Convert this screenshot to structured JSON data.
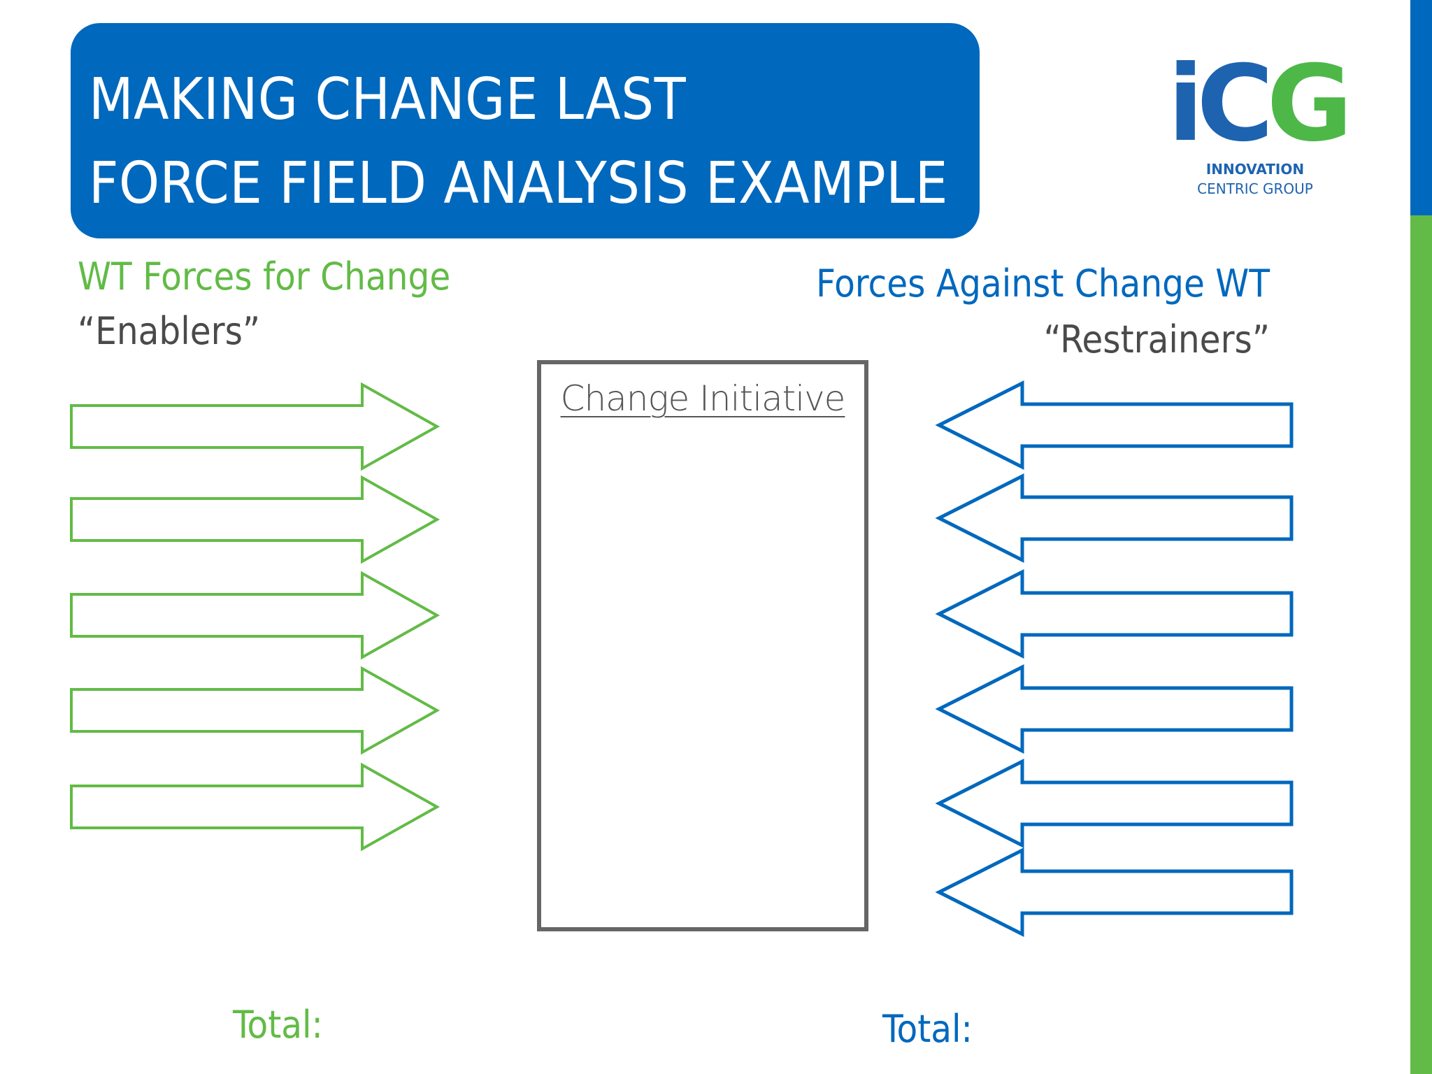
{
  "colors": {
    "blue": "#0068bd",
    "green": "#62bb46",
    "logo_blue": "#1e63b0",
    "logo_green": "#4db848",
    "grey_text": "#4a4a4a"
  },
  "title": {
    "line1": "MAKING CHANGE LAST",
    "line2": "FORCE FIELD ANALYSIS EXAMPLE"
  },
  "logo": {
    "letters_ic": "iC",
    "letter_g": "G",
    "line1": "INNOVATION",
    "line2": "CENTRIC GROUP"
  },
  "enablers": {
    "title": "WT Forces for Change",
    "subtitle": "“Enablers”",
    "arrow_count": 5,
    "total_label": "Total:"
  },
  "restrainers": {
    "title": "Forces Against Change WT",
    "subtitle": "“Restrainers”",
    "arrow_count": 6,
    "total_label": "Total:"
  },
  "center": {
    "label": "Change Initiative"
  }
}
